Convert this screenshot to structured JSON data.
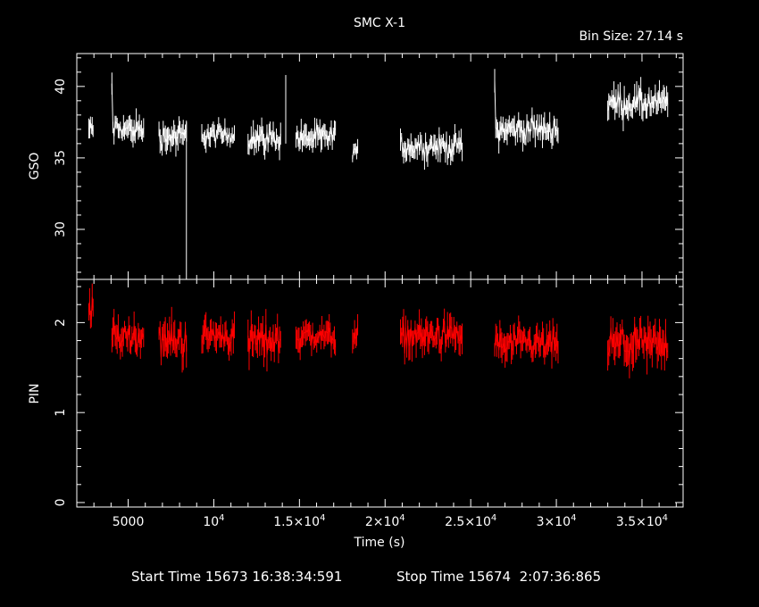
{
  "chart_data": {
    "type": "line",
    "title": "SMC X-1",
    "bin_size_label": "Bin Size: 27.14 s",
    "xlabel": "Time (s)",
    "xlim": [
      2000,
      37400
    ],
    "x_ticks": [
      {
        "value": 5000,
        "mant": "5000",
        "exp": ""
      },
      {
        "value": 10000,
        "mant": "10",
        "exp": "4"
      },
      {
        "value": 15000,
        "mant": "1.5×10",
        "exp": "4"
      },
      {
        "value": 20000,
        "mant": "2×10",
        "exp": "4"
      },
      {
        "value": 25000,
        "mant": "2.5×10",
        "exp": "4"
      },
      {
        "value": 30000,
        "mant": "3×10",
        "exp": "4"
      },
      {
        "value": 35000,
        "mant": "3.5×10",
        "exp": "4"
      }
    ],
    "panels": [
      {
        "name": "GSO",
        "ylabel": "GSO",
        "color": "#ffffff",
        "ylim": [
          26.5,
          42.3
        ],
        "y_ticks": [
          30,
          35,
          40
        ],
        "segments": [
          {
            "x": [
              2700,
              2950
            ],
            "level": 37.0,
            "spread": 1.0
          },
          {
            "x": [
              4050,
              5900
            ],
            "level": 37.0,
            "spread": 1.2
          },
          {
            "x": [
              6800,
              8400
            ],
            "level": 36.5,
            "spread": 1.3
          },
          {
            "x": [
              9300,
              11200
            ],
            "level": 36.6,
            "spread": 1.0
          },
          {
            "x": [
              12000,
              13900
            ],
            "level": 36.4,
            "spread": 1.2
          },
          {
            "x": [
              14800,
              17100
            ],
            "level": 36.4,
            "spread": 1.2
          },
          {
            "x": [
              18100,
              18400
            ],
            "level": 35.5,
            "spread": 0.8
          },
          {
            "x": [
              20900,
              24500
            ],
            "level": 35.8,
            "spread": 1.2
          },
          {
            "x": [
              26400,
              30100
            ],
            "level": 37.0,
            "spread": 1.2
          },
          {
            "x": [
              33000,
              36500
            ],
            "level": 38.8,
            "spread": 1.4
          }
        ]
      },
      {
        "name": "PIN",
        "ylabel": "PIN",
        "color": "#ff0000",
        "ylim": [
          -0.05,
          2.48
        ],
        "y_ticks": [
          0,
          1,
          2
        ],
        "segments": [
          {
            "x": [
              2700,
              2950
            ],
            "level": 2.15,
            "spread": 0.25
          },
          {
            "x": [
              4050,
              5900
            ],
            "level": 1.85,
            "spread": 0.25
          },
          {
            "x": [
              6800,
              8400
            ],
            "level": 1.8,
            "spread": 0.28
          },
          {
            "x": [
              9300,
              11200
            ],
            "level": 1.85,
            "spread": 0.25
          },
          {
            "x": [
              12000,
              13900
            ],
            "level": 1.8,
            "spread": 0.28
          },
          {
            "x": [
              14800,
              17100
            ],
            "level": 1.85,
            "spread": 0.22
          },
          {
            "x": [
              18100,
              18400
            ],
            "level": 1.85,
            "spread": 0.2
          },
          {
            "x": [
              20900,
              24500
            ],
            "level": 1.85,
            "spread": 0.25
          },
          {
            "x": [
              26400,
              30100
            ],
            "level": 1.75,
            "spread": 0.25
          },
          {
            "x": [
              33000,
              36500
            ],
            "level": 1.75,
            "spread": 0.3
          }
        ]
      }
    ]
  },
  "footer": {
    "start_label": "Start Time 15673 16:38:34:591",
    "stop_label": "Stop Time 15674  2:07:36:865"
  }
}
